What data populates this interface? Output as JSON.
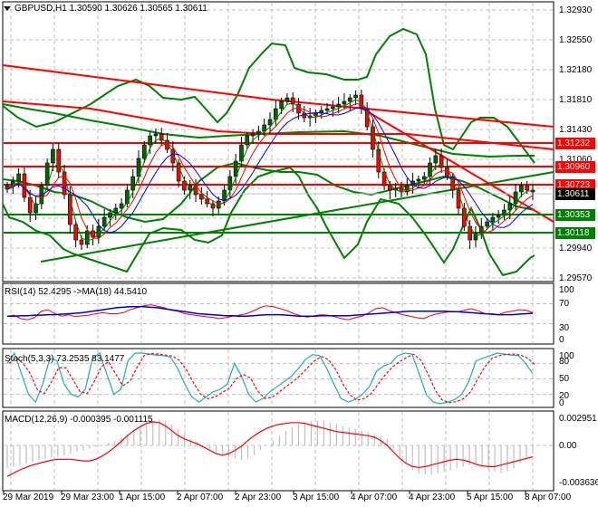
{
  "window": {
    "symbol_header": "GBPUSD,H1  1.30590 1.30626 1.30565 1.30611",
    "collapse_arrow": "triangle-down"
  },
  "colors": {
    "grid": "#c0c0c0",
    "bull_candle": "#006400",
    "bear_candle": "#ff0000",
    "resistance": "#ff0000",
    "support": "#008000",
    "bollinger": "#008000",
    "ma_fast": "#008000",
    "ma_mid": "#ff0000",
    "ma_slow": "#0000ff",
    "rsi_line": "#ff0000",
    "rsi_ma": "#0000cc",
    "stoch_main": "#20b2aa",
    "stoch_signal": "#ff0000",
    "macd_hist": "#c0c0c0",
    "macd_signal": "#ff0000",
    "current_price_bg": "#000000"
  },
  "main_chart": {
    "price_axis": [
      "1.32930",
      "1.32550",
      "1.32180",
      "1.31810",
      "1.31430",
      "1.31060",
      "1.30690",
      "1.30310",
      "1.29940",
      "1.29570"
    ],
    "price_tags": [
      {
        "value": "1.31232",
        "type": "resistance",
        "color": "#ff0000"
      },
      {
        "value": "1.30960",
        "type": "resistance",
        "color": "#ff0000"
      },
      {
        "value": "1.30723",
        "type": "resistance",
        "color": "#ff0000"
      },
      {
        "value": "1.30611",
        "type": "current",
        "color": "#000000"
      },
      {
        "value": "1.30353",
        "type": "support",
        "color": "#008000"
      },
      {
        "value": "1.30118",
        "type": "support",
        "color": "#008000"
      }
    ]
  },
  "rsi_panel": {
    "title": "RSI(14) 52.4295  ->MA(18) 44.5410",
    "axis": [
      "100",
      "70",
      "30",
      "0"
    ]
  },
  "stoch_panel": {
    "title": "Stoch(5,3,3) 73.2535 83.1477",
    "axis": [
      "100",
      "80",
      "50",
      "20",
      "0"
    ]
  },
  "macd_panel": {
    "title": "MACD(12,26,9) -0.000395 -0.001115",
    "axis": [
      "0.002951",
      "0.00",
      "-0.003636"
    ]
  },
  "time_axis": [
    "29 Mar 2019",
    "29 Mar 23:00",
    "1 Apr 15:00",
    "2 Apr 07:00",
    "2 Apr 23:00",
    "3 Apr 15:00",
    "4 Apr 07:00",
    "4 Apr 23:00",
    "5 Apr 15:00",
    "8 Apr 07:00"
  ],
  "chart_data": [
    {
      "type": "candlestick",
      "title": "GBPUSD,H1",
      "ohlc_last": {
        "open": 1.3059,
        "high": 1.30626,
        "low": 1.30565,
        "close": 1.30611
      },
      "ylim": [
        1.295,
        1.331
      ],
      "yticks": [
        1.3293,
        1.3255,
        1.3218,
        1.3181,
        1.3143,
        1.3106,
        1.3069,
        1.3031,
        1.2994,
        1.2957
      ],
      "x": [
        "29 Mar 2019",
        "29 Mar 23:00",
        "1 Apr 15:00",
        "2 Apr 07:00",
        "2 Apr 23:00",
        "3 Apr 15:00",
        "4 Apr 07:00",
        "4 Apr 23:00",
        "5 Apr 15:00",
        "8 Apr 07:00"
      ],
      "close_approx": [
        1.3075,
        1.3025,
        1.313,
        1.3045,
        1.3135,
        1.3165,
        1.308,
        1.3075,
        1.301,
        1.3061
      ],
      "horizontal_levels": {
        "resistance": [
          1.31232,
          1.3096,
          1.30723
        ],
        "support": [
          1.30353,
          1.30118
        ]
      },
      "overlays": [
        "Bollinger Bands",
        "Moving Averages (green, red, blue)",
        "Trend lines"
      ],
      "grid": true
    },
    {
      "type": "line",
      "title": "RSI(14) 52.4295 ->MA(18) 44.5410",
      "ylim": [
        0,
        100
      ],
      "yticks": [
        100,
        70,
        30,
        0
      ],
      "series": [
        {
          "name": "RSI(14)",
          "last": 52.4295
        },
        {
          "name": "MA(18)",
          "last": 44.541
        }
      ]
    },
    {
      "type": "line",
      "title": "Stoch(5,3,3) 73.2535 83.1477",
      "ylim": [
        0,
        100
      ],
      "yticks": [
        100,
        80,
        50,
        20,
        0
      ],
      "series": [
        {
          "name": "%K",
          "last": 73.2535
        },
        {
          "name": "%D",
          "last": 83.1477
        }
      ]
    },
    {
      "type": "bar",
      "title": "MACD(12,26,9) -0.000395 -0.001115",
      "ylim": [
        -0.003636,
        0.002951
      ],
      "yticks": [
        0.002951,
        0.0,
        -0.003636
      ],
      "series": [
        {
          "name": "MACD histogram",
          "last": -0.000395
        },
        {
          "name": "Signal",
          "last": -0.001115
        }
      ]
    }
  ]
}
